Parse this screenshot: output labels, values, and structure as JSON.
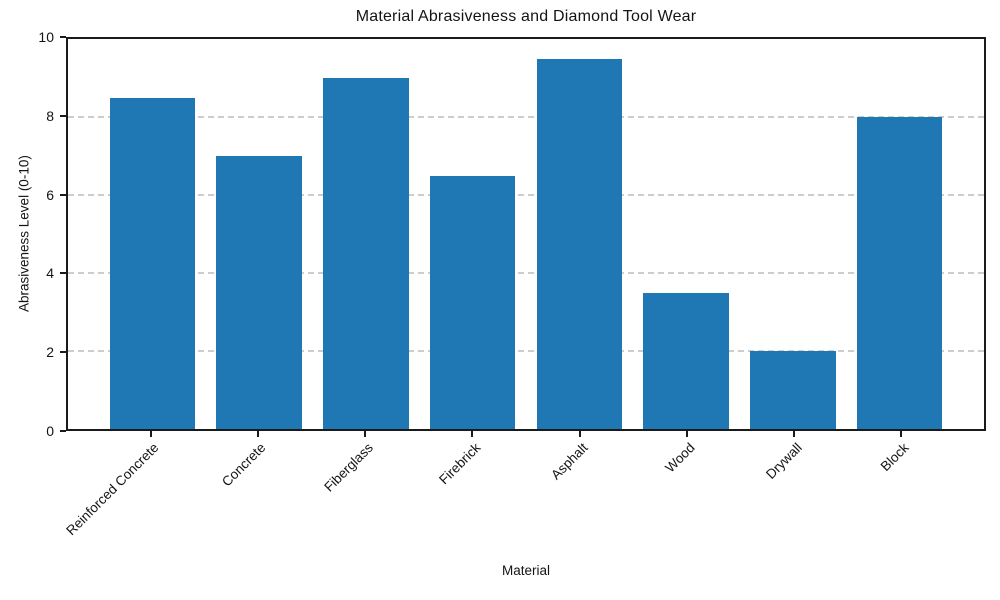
{
  "chart_data": {
    "type": "bar",
    "title": "Material Abrasiveness and Diamond Tool Wear",
    "xlabel": "Material",
    "ylabel": "Abrasiveness Level (0-10)",
    "categories": [
      "Reinforced Concrete",
      "Concrete",
      "Fiberglass",
      "Firebrick",
      "Asphalt",
      "Wood",
      "Drywall",
      "Block"
    ],
    "values": [
      8.5,
      7.0,
      9.0,
      6.5,
      9.5,
      3.5,
      2.0,
      8.0
    ],
    "ylim": [
      0,
      10
    ],
    "yticks": [
      0,
      2,
      4,
      6,
      8,
      10
    ],
    "bar_color": "#1f77b4",
    "grid": "horizontal-dashed",
    "gridline_color": "#cdcdcd",
    "legend": "none",
    "x_tick_rotation_deg": 45
  }
}
